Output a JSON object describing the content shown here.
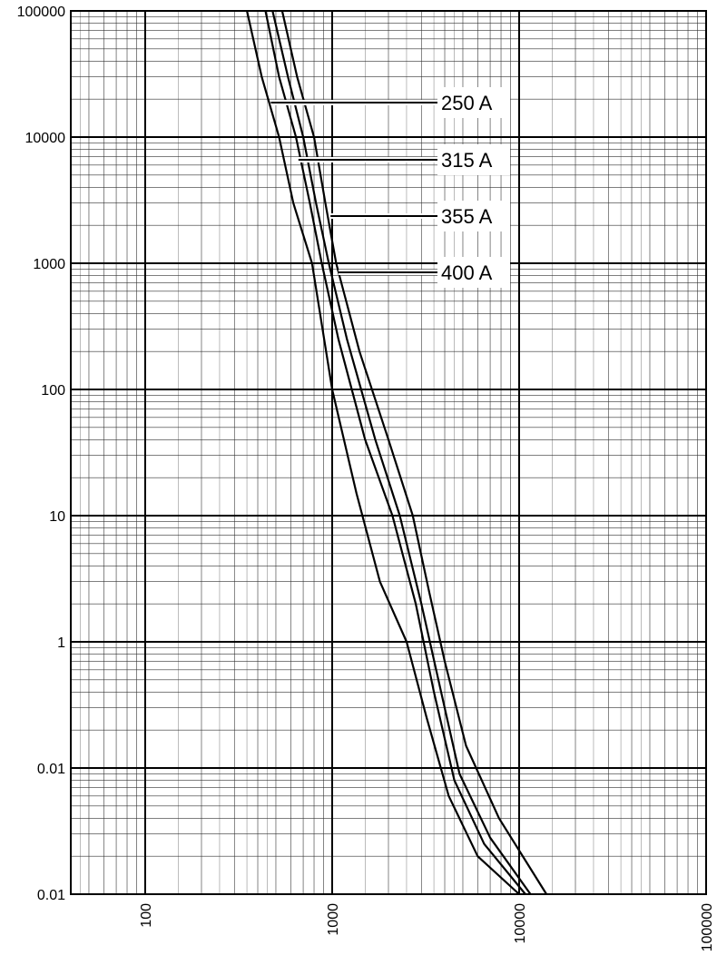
{
  "chart_data": {
    "type": "line",
    "x_scale": "log",
    "y_scale": "log",
    "xlim": [
      40,
      100000
    ],
    "ylim": [
      0.01,
      100000
    ],
    "grid": true,
    "x_ticks": [
      "100",
      "1000",
      "10000",
      "100000"
    ],
    "y_ticks": [
      "0.01",
      "0.01",
      "1",
      "10",
      "100",
      "1000",
      "10000",
      "100000"
    ],
    "series": [
      {
        "name": "250 A",
        "points": [
          [
            350,
            100000
          ],
          [
            420,
            30000
          ],
          [
            520,
            10000
          ],
          [
            620,
            3000
          ],
          [
            780,
            1000
          ],
          [
            1000,
            100
          ],
          [
            1350,
            15
          ],
          [
            1800,
            3
          ],
          [
            2500,
            1
          ],
          [
            3200,
            0.25
          ],
          [
            4200,
            0.06
          ],
          [
            6000,
            0.02
          ],
          [
            10000,
            0.01
          ]
        ]
      },
      {
        "name": "315 A",
        "points": [
          [
            440,
            100000
          ],
          [
            520,
            30000
          ],
          [
            640,
            10000
          ],
          [
            760,
            3000
          ],
          [
            880,
            1000
          ],
          [
            1080,
            250
          ],
          [
            1500,
            40
          ],
          [
            2100,
            10
          ],
          [
            2800,
            2
          ],
          [
            3500,
            0.4
          ],
          [
            4500,
            0.08
          ],
          [
            6500,
            0.025
          ],
          [
            10800,
            0.01
          ]
        ]
      },
      {
        "name": "355 A",
        "points": [
          [
            480,
            100000
          ],
          [
            580,
            30000
          ],
          [
            700,
            10000
          ],
          [
            820,
            3000
          ],
          [
            960,
            1000
          ],
          [
            1200,
            250
          ],
          [
            1700,
            40
          ],
          [
            2300,
            10
          ],
          [
            3000,
            2
          ],
          [
            3700,
            0.5
          ],
          [
            4800,
            0.09
          ],
          [
            7000,
            0.028
          ],
          [
            11500,
            0.01
          ]
        ]
      },
      {
        "name": "400 A",
        "points": [
          [
            540,
            100000
          ],
          [
            650,
            30000
          ],
          [
            800,
            10000
          ],
          [
            920,
            3000
          ],
          [
            1050,
            1000
          ],
          [
            1400,
            200
          ],
          [
            2000,
            40
          ],
          [
            2700,
            10
          ],
          [
            3300,
            2.5
          ],
          [
            4000,
            0.7
          ],
          [
            5200,
            0.15
          ],
          [
            7800,
            0.04
          ],
          [
            14000,
            0.01
          ]
        ]
      }
    ],
    "legend": [
      {
        "label": "250 A",
        "leader_to": [
          470,
          20000
        ]
      },
      {
        "label": "315 A",
        "leader_to": [
          660,
          6500
        ]
      },
      {
        "label": "355 A",
        "leader_to": [
          980,
          2200
        ]
      },
      {
        "label": "400 A",
        "leader_to": [
          1080,
          800
        ]
      }
    ]
  }
}
